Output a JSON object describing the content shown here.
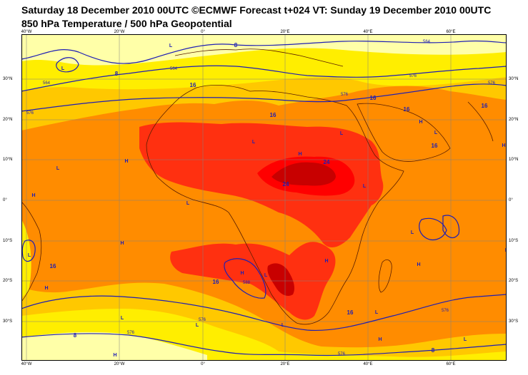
{
  "header": {
    "title_line1": "Saturday 18 December 2010 00UTC ©ECMWF Forecast t+024 VT: Sunday 19 December 2010 00UTC",
    "title_line2": "850 hPa Temperature / 500 hPa Geopotential"
  },
  "axes": {
    "longitude_labels": [
      "40°W",
      "20°W",
      "0°",
      "20°E",
      "40°E",
      "60°E"
    ],
    "latitude_labels": [
      "30°N",
      "20°N",
      "10°N",
      "0°",
      "10°S",
      "20°S",
      "30°S"
    ]
  },
  "map_labels": {
    "temperature_labels": [
      "8",
      "16",
      "16",
      "16",
      "16",
      "16",
      "24",
      "24",
      "16",
      "16",
      "16",
      "16",
      "8",
      "8",
      "8"
    ],
    "geopotential_labels": [
      "564",
      "564",
      "576",
      "576",
      "576",
      "564",
      "576",
      "588",
      "576",
      "576",
      "576",
      "576"
    ],
    "pressure_centers": [
      "L",
      "L",
      "H",
      "H",
      "L",
      "L",
      "H",
      "L",
      "H",
      "H",
      "L",
      "L",
      "H",
      "L",
      "H",
      "L",
      "H",
      "H",
      "L",
      "L",
      "H",
      "L",
      "L",
      "H",
      "L",
      "L",
      "H",
      "L",
      "L",
      "L"
    ]
  },
  "colors": {
    "band_lt8": "#ffffa8",
    "band_8_12": "#ffee00",
    "band_12_16": "#ffc800",
    "band_16_20": "#ff8c00",
    "band_20_24": "#ff3010",
    "band_24_28": "#ff0000",
    "band_gt28": "#c80000",
    "contour": "#1e1eb4",
    "coast": "#5a1e00"
  }
}
